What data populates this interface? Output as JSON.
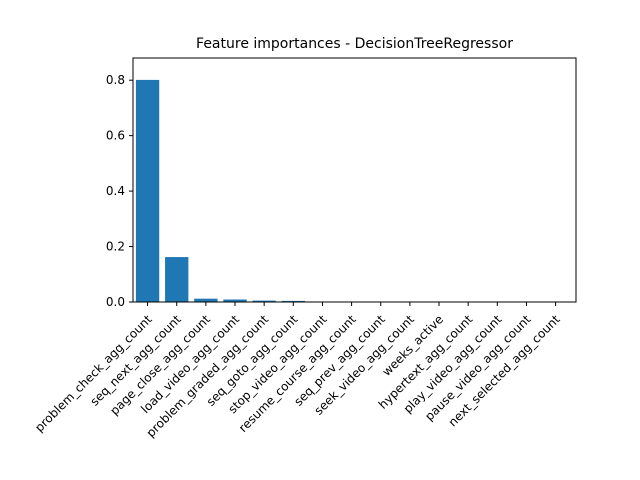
{
  "chart_data": {
    "type": "bar",
    "title": "Feature importances - DecisionTreeRegressor",
    "xlabel": "",
    "ylabel": "",
    "categories": [
      "problem_check_agg_count",
      "seq_next_agg_count",
      "page_close_agg_count",
      "load_video_agg_count",
      "problem_graded_agg_count",
      "seq_goto_agg_count",
      "stop_video_agg_count",
      "resume_course_agg_count",
      "seq_prev_agg_count",
      "seek_video_agg_count",
      "weeks_active",
      "hypertext_agg_count",
      "play_video_agg_count",
      "pause_video_agg_count",
      "next_selected_agg_count"
    ],
    "values": [
      0.801,
      0.162,
      0.012,
      0.009,
      0.005,
      0.004,
      0.001,
      0.001,
      0.001,
      0.001,
      0.001,
      0.0,
      0.0,
      0.0,
      0.0
    ],
    "ylim": [
      0,
      0.88
    ],
    "yticks": [
      0.0,
      0.2,
      0.4,
      0.6,
      0.8
    ],
    "ytick_labels": [
      "0.0",
      "0.2",
      "0.4",
      "0.6",
      "0.8"
    ],
    "bar_color": "#1f77b4",
    "grid": false,
    "legend": "none"
  }
}
